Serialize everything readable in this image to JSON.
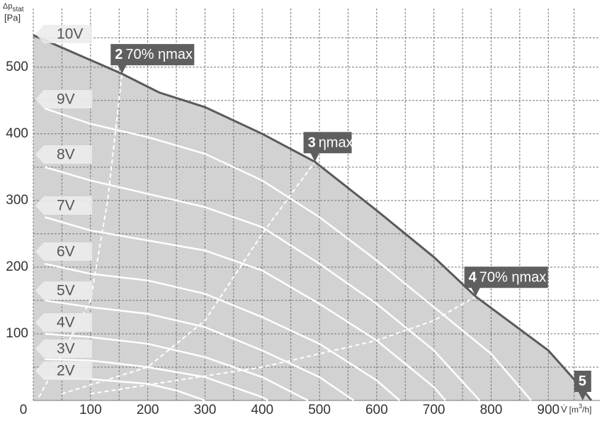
{
  "chart_data": {
    "type": "line",
    "y_label": {
      "main": "Δp",
      "sub": "stat",
      "unit": "[Pa]"
    },
    "x_label": {
      "main": "V̇",
      "unit_pre": "[m",
      "sup": "3",
      "unit_post": "/h]"
    },
    "xlim": [
      0,
      990
    ],
    "ylim": [
      0,
      588
    ],
    "xticks": [
      0,
      100,
      200,
      300,
      400,
      500,
      600,
      700,
      800,
      900
    ],
    "yticks": [
      100,
      200,
      300,
      400,
      500
    ],
    "grid": true,
    "fill_color": "#d2d2d2",
    "series": [
      {
        "name": "10V",
        "color": "#5a5a5a",
        "x": [
          0,
          35,
          155,
          220,
          300,
          400,
          492,
          600,
          700,
          773,
          900,
          956,
          975
        ],
        "values": [
          548,
          535,
          490,
          462,
          440,
          400,
          358,
          285,
          215,
          156,
          75,
          21,
          0
        ]
      },
      {
        "name": "9V",
        "color": "#ffffff",
        "x": [
          20,
          100,
          200,
          300,
          400,
          500,
          600,
          700,
          800,
          870
        ],
        "values": [
          438,
          415,
          395,
          370,
          330,
          275,
          210,
          140,
          70,
          0
        ]
      },
      {
        "name": "8V",
        "color": "#ffffff",
        "x": [
          20,
          100,
          200,
          300,
          400,
          500,
          600,
          700,
          780
        ],
        "values": [
          350,
          330,
          310,
          290,
          260,
          205,
          145,
          75,
          0
        ]
      },
      {
        "name": "7V",
        "color": "#ffffff",
        "x": [
          20,
          100,
          200,
          300,
          400,
          500,
          600,
          700,
          720
        ],
        "values": [
          275,
          255,
          240,
          225,
          195,
          145,
          90,
          20,
          0
        ]
      },
      {
        "name": "6V",
        "color": "#ffffff",
        "x": [
          20,
          100,
          200,
          300,
          400,
          500,
          600,
          640
        ],
        "values": [
          205,
          190,
          180,
          160,
          125,
          85,
          30,
          0
        ]
      },
      {
        "name": "5V",
        "color": "#ffffff",
        "x": [
          20,
          100,
          200,
          300,
          400,
          500,
          560
        ],
        "values": [
          150,
          140,
          130,
          110,
          75,
          35,
          0
        ]
      },
      {
        "name": "4V",
        "color": "#ffffff",
        "x": [
          20,
          100,
          200,
          300,
          400,
          480
        ],
        "values": [
          100,
          95,
          85,
          65,
          35,
          0
        ]
      },
      {
        "name": "3V",
        "color": "#ffffff",
        "x": [
          20,
          100,
          200,
          300,
          400,
          410
        ],
        "values": [
          62,
          60,
          50,
          35,
          5,
          0
        ]
      },
      {
        "name": "2V",
        "color": "#ffffff",
        "x": [
          20,
          100,
          200,
          250,
          300
        ],
        "values": [
          35,
          32,
          25,
          15,
          0
        ]
      }
    ],
    "efficiency_lines": [
      {
        "x": [
          10,
          100,
          130,
          155
        ],
        "values": [
          5,
          150,
          300,
          490
        ]
      },
      {
        "x": [
          50,
          200,
          300,
          400,
          492
        ],
        "values": [
          10,
          50,
          120,
          250,
          358
        ]
      },
      {
        "x": [
          100,
          400,
          600,
          700,
          773
        ],
        "values": [
          10,
          50,
          90,
          120,
          156
        ]
      }
    ],
    "annotations": [
      {
        "num": "2",
        "text": "70% ηmax",
        "x": 155,
        "y": 490
      },
      {
        "num": "3",
        "text": "ηmax",
        "x": 492,
        "y": 358
      },
      {
        "num": "4",
        "text": "70% ηmax",
        "x": 773,
        "y": 156
      },
      {
        "num": "5",
        "x": 960,
        "y": 0
      }
    ]
  }
}
